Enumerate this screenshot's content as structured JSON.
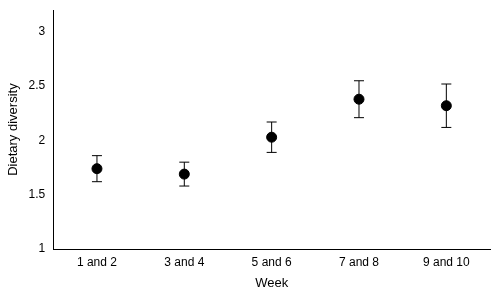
{
  "chart_data": {
    "type": "scatter",
    "x_label": "Week",
    "y_label": "Dietary diversity",
    "categories": [
      "1 and 2",
      "3 and 4",
      "5 and 6",
      "7 and 8",
      "9 and 10"
    ],
    "values": [
      1.74,
      1.69,
      2.03,
      2.38,
      2.32
    ],
    "errors": [
      0.12,
      0.11,
      0.14,
      0.17,
      0.2
    ],
    "color": "#000000",
    "marker": "circle",
    "ylim": [
      1,
      3.2
    ],
    "yticks": [
      1,
      1.5,
      2,
      2.5,
      3
    ],
    "grid": false
  }
}
